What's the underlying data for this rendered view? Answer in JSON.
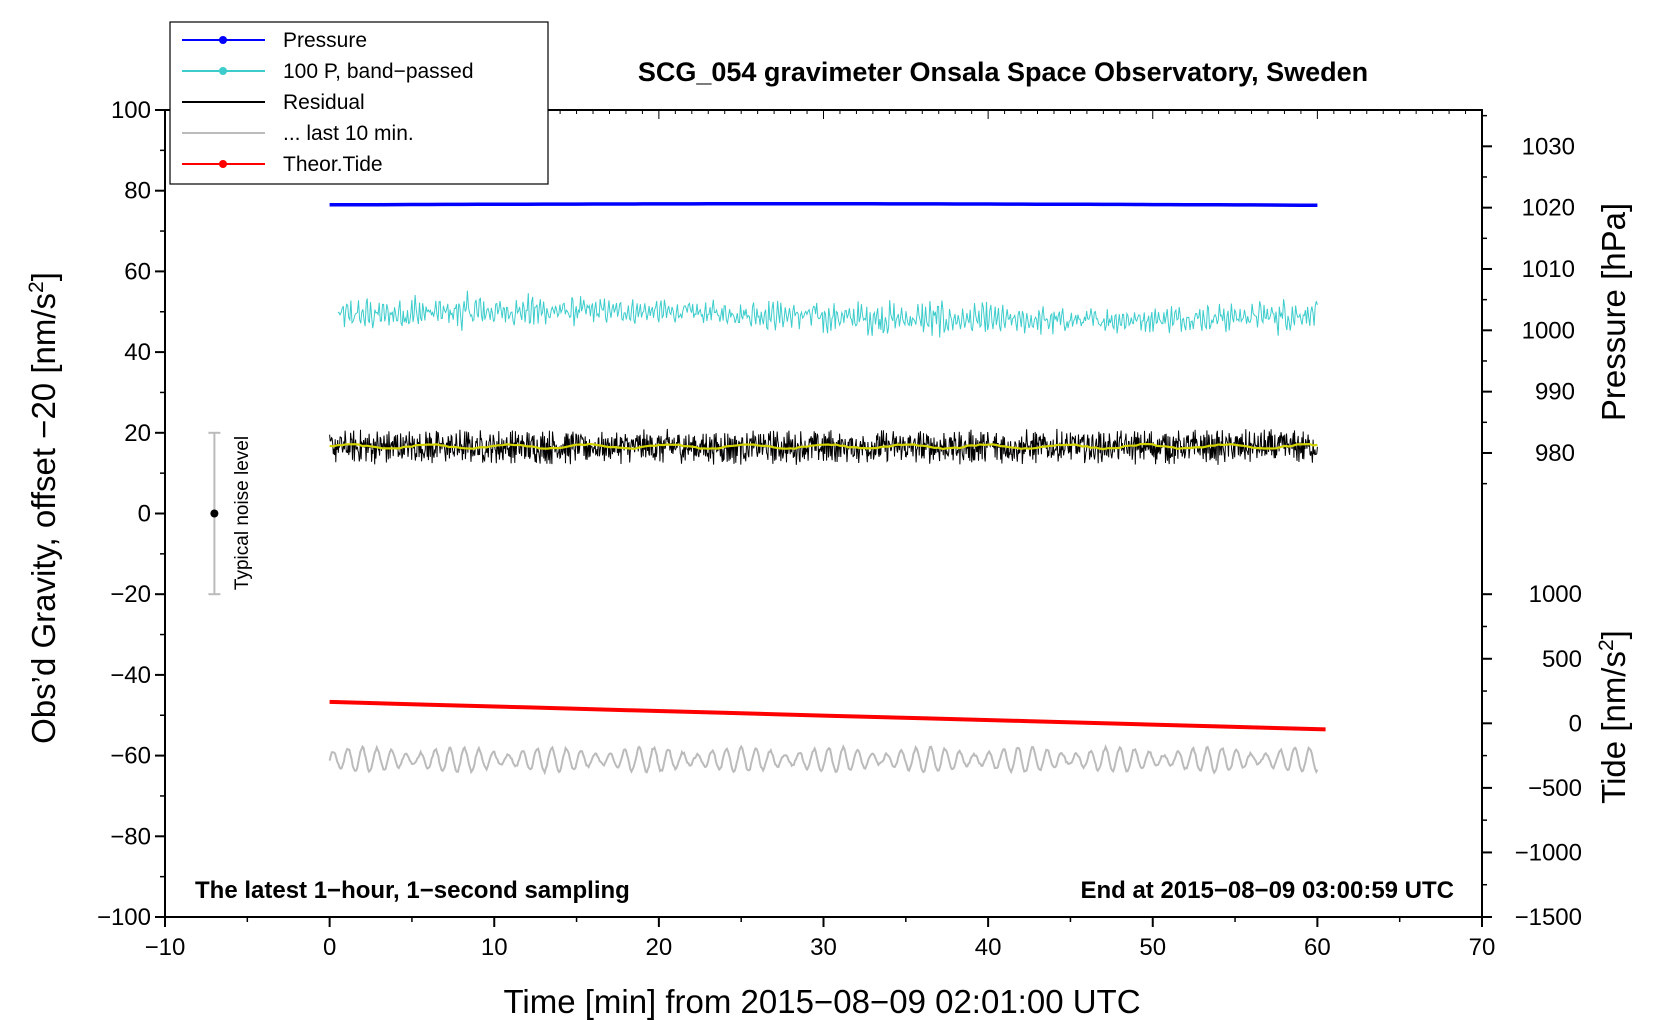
{
  "chart_data": {
    "type": "line",
    "title": "SCG_054 gravimeter Onsala Space Observatory, Sweden",
    "xlabel": "Time [min] from 2015−08−09 02:01:00 UTC",
    "ylabel_left_main": "Obs’d Gravity, offset −20 [nm/s",
    "ylabel_left_sup": "2",
    "ylabel_left_end": "]",
    "ylabel_right_pressure": "Pressure [hPa]",
    "ylabel_right_tide_main": "Tide [nm/s",
    "ylabel_right_tide_sup": "2",
    "ylabel_right_tide_end": "]",
    "xlim": [
      -10,
      70
    ],
    "ylim": [
      -100,
      100
    ],
    "x_ticks": [
      -10,
      0,
      10,
      20,
      30,
      40,
      50,
      60,
      70
    ],
    "x_tick_labels": [
      "−10",
      "0",
      "10",
      "20",
      "30",
      "40",
      "50",
      "60",
      "70"
    ],
    "y_ticks": [
      -100,
      -80,
      -60,
      -40,
      -20,
      0,
      20,
      40,
      60,
      80,
      100
    ],
    "y_tick_labels": [
      "−100",
      "−80",
      "−60",
      "−40",
      "−20",
      "0",
      "20",
      "40",
      "60",
      "80",
      "100"
    ],
    "pressure_axis": {
      "ticks": [
        980,
        990,
        1000,
        1010,
        1020,
        1030
      ],
      "labels": [
        "980",
        "990",
        "1000",
        "1010",
        "1020",
        "1030"
      ],
      "map_pressure": [
        980,
        1030
      ],
      "map_left_y": [
        15,
        91
      ]
    },
    "tide_axis": {
      "ticks": [
        -1500,
        -1000,
        -500,
        0,
        500,
        1000
      ],
      "labels": [
        "−1500",
        "−1000",
        "−500",
        "0",
        "500",
        "1000"
      ],
      "map_tide": [
        -1500,
        1000
      ],
      "map_left_y": [
        -100,
        -20
      ]
    },
    "legend": [
      {
        "label": "Pressure",
        "color": "#0000ff",
        "marker": true
      },
      {
        "label": "100 P, band−passed",
        "color": "#3ccccc",
        "marker": true
      },
      {
        "label": "Residual",
        "color": "#000000",
        "marker": false
      },
      {
        "label": "... last 10 min.",
        "color": "#bbbbbb",
        "marker": false
      },
      {
        "label": "Theor.Tide",
        "color": "#ff0000",
        "marker": true
      }
    ],
    "series": [
      {
        "name": "Pressure",
        "color": "#0000ff",
        "x_range": [
          0,
          60
        ],
        "y_start": 76.5,
        "y_mid": 76.8,
        "y_end": 76.4,
        "noise_amp": 0
      },
      {
        "name": "100 P, band−passed",
        "color": "#3ccccc",
        "x_range": [
          0.5,
          60
        ],
        "y_center": 49,
        "noise_amp": 4
      },
      {
        "name": "Residual",
        "color": "#000000",
        "x_range": [
          0,
          60
        ],
        "y_center": 16.5,
        "noise_amp": 3
      },
      {
        "name": "Residual smoothed",
        "color": "#d4d400",
        "x_range": [
          0,
          60
        ],
        "y_center": 16.6,
        "noise_amp": 0.5
      },
      {
        "name": "... last 10 min.",
        "color": "#bbbbbb",
        "x_range": [
          0,
          60
        ],
        "y_center": -61,
        "noise_amp": 3
      },
      {
        "name": "Theor.Tide",
        "color": "#ff0000",
        "x_range": [
          0,
          60.5
        ],
        "y_start": -46.7,
        "y_end": -53.5,
        "noise_amp": 0
      }
    ],
    "noise_bar": {
      "label": "Typical noise level",
      "x": -7,
      "y_center": 0,
      "y_low": -20,
      "y_high": 20
    },
    "annotations": {
      "bottom_left": "The latest 1−hour, 1−second sampling",
      "bottom_right": "End at 2015−08−09 03:00:59 UTC"
    }
  }
}
